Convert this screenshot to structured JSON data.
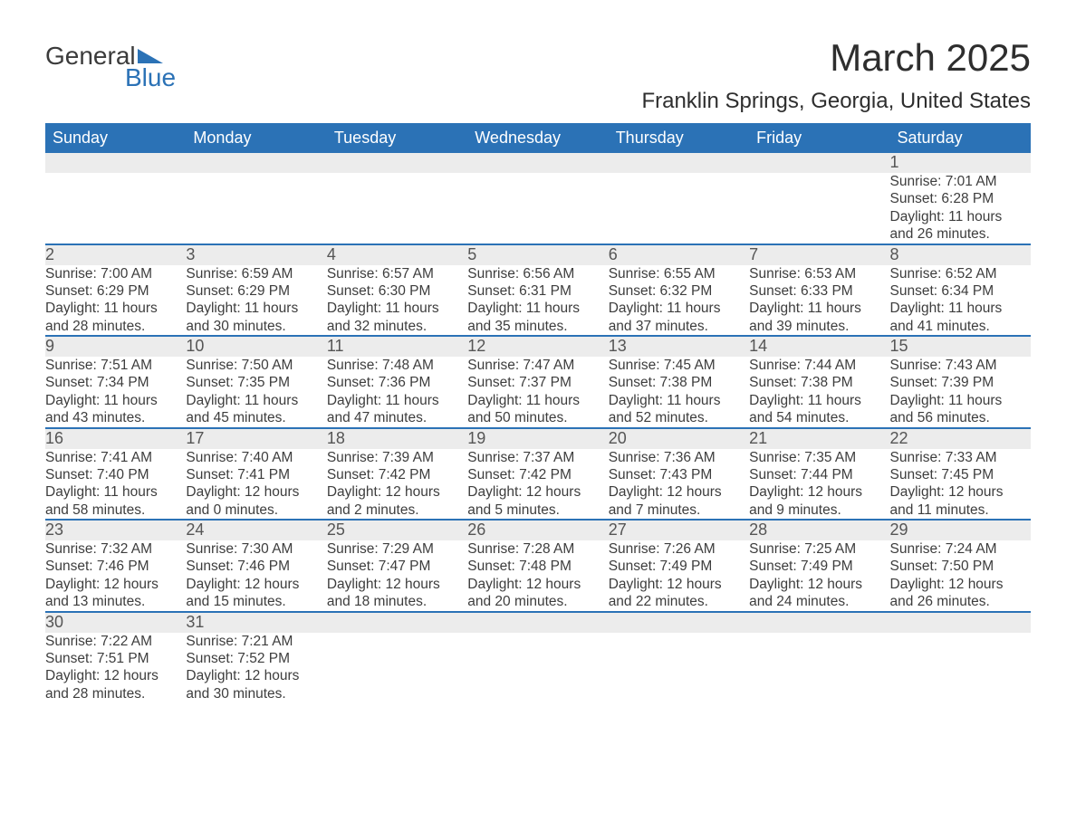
{
  "logo": {
    "line1": "General",
    "line2": "Blue"
  },
  "title": "March 2025",
  "location": "Franklin Springs, Georgia, United States",
  "weekday_headers": [
    "Sunday",
    "Monday",
    "Tuesday",
    "Wednesday",
    "Thursday",
    "Friday",
    "Saturday"
  ],
  "colors": {
    "header_bg": "#2b72b6",
    "header_fg": "#ffffff",
    "daynum_bg": "#ececec",
    "row_divider": "#2b72b6",
    "text": "#3d3d3d",
    "page_bg": "#ffffff"
  },
  "layout": {
    "columns": 7,
    "week_rows": 6,
    "month_title_fontsize": 42,
    "location_fontsize": 24,
    "header_fontsize": 18,
    "cell_fontsize": 15.5
  },
  "weeks": [
    [
      null,
      null,
      null,
      null,
      null,
      null,
      {
        "n": "1",
        "sr": "Sunrise: 7:01 AM",
        "ss": "Sunset: 6:28 PM",
        "d1": "Daylight: 11 hours",
        "d2": "and 26 minutes."
      }
    ],
    [
      {
        "n": "2",
        "sr": "Sunrise: 7:00 AM",
        "ss": "Sunset: 6:29 PM",
        "d1": "Daylight: 11 hours",
        "d2": "and 28 minutes."
      },
      {
        "n": "3",
        "sr": "Sunrise: 6:59 AM",
        "ss": "Sunset: 6:29 PM",
        "d1": "Daylight: 11 hours",
        "d2": "and 30 minutes."
      },
      {
        "n": "4",
        "sr": "Sunrise: 6:57 AM",
        "ss": "Sunset: 6:30 PM",
        "d1": "Daylight: 11 hours",
        "d2": "and 32 minutes."
      },
      {
        "n": "5",
        "sr": "Sunrise: 6:56 AM",
        "ss": "Sunset: 6:31 PM",
        "d1": "Daylight: 11 hours",
        "d2": "and 35 minutes."
      },
      {
        "n": "6",
        "sr": "Sunrise: 6:55 AM",
        "ss": "Sunset: 6:32 PM",
        "d1": "Daylight: 11 hours",
        "d2": "and 37 minutes."
      },
      {
        "n": "7",
        "sr": "Sunrise: 6:53 AM",
        "ss": "Sunset: 6:33 PM",
        "d1": "Daylight: 11 hours",
        "d2": "and 39 minutes."
      },
      {
        "n": "8",
        "sr": "Sunrise: 6:52 AM",
        "ss": "Sunset: 6:34 PM",
        "d1": "Daylight: 11 hours",
        "d2": "and 41 minutes."
      }
    ],
    [
      {
        "n": "9",
        "sr": "Sunrise: 7:51 AM",
        "ss": "Sunset: 7:34 PM",
        "d1": "Daylight: 11 hours",
        "d2": "and 43 minutes."
      },
      {
        "n": "10",
        "sr": "Sunrise: 7:50 AM",
        "ss": "Sunset: 7:35 PM",
        "d1": "Daylight: 11 hours",
        "d2": "and 45 minutes."
      },
      {
        "n": "11",
        "sr": "Sunrise: 7:48 AM",
        "ss": "Sunset: 7:36 PM",
        "d1": "Daylight: 11 hours",
        "d2": "and 47 minutes."
      },
      {
        "n": "12",
        "sr": "Sunrise: 7:47 AM",
        "ss": "Sunset: 7:37 PM",
        "d1": "Daylight: 11 hours",
        "d2": "and 50 minutes."
      },
      {
        "n": "13",
        "sr": "Sunrise: 7:45 AM",
        "ss": "Sunset: 7:38 PM",
        "d1": "Daylight: 11 hours",
        "d2": "and 52 minutes."
      },
      {
        "n": "14",
        "sr": "Sunrise: 7:44 AM",
        "ss": "Sunset: 7:38 PM",
        "d1": "Daylight: 11 hours",
        "d2": "and 54 minutes."
      },
      {
        "n": "15",
        "sr": "Sunrise: 7:43 AM",
        "ss": "Sunset: 7:39 PM",
        "d1": "Daylight: 11 hours",
        "d2": "and 56 minutes."
      }
    ],
    [
      {
        "n": "16",
        "sr": "Sunrise: 7:41 AM",
        "ss": "Sunset: 7:40 PM",
        "d1": "Daylight: 11 hours",
        "d2": "and 58 minutes."
      },
      {
        "n": "17",
        "sr": "Sunrise: 7:40 AM",
        "ss": "Sunset: 7:41 PM",
        "d1": "Daylight: 12 hours",
        "d2": "and 0 minutes."
      },
      {
        "n": "18",
        "sr": "Sunrise: 7:39 AM",
        "ss": "Sunset: 7:42 PM",
        "d1": "Daylight: 12 hours",
        "d2": "and 2 minutes."
      },
      {
        "n": "19",
        "sr": "Sunrise: 7:37 AM",
        "ss": "Sunset: 7:42 PM",
        "d1": "Daylight: 12 hours",
        "d2": "and 5 minutes."
      },
      {
        "n": "20",
        "sr": "Sunrise: 7:36 AM",
        "ss": "Sunset: 7:43 PM",
        "d1": "Daylight: 12 hours",
        "d2": "and 7 minutes."
      },
      {
        "n": "21",
        "sr": "Sunrise: 7:35 AM",
        "ss": "Sunset: 7:44 PM",
        "d1": "Daylight: 12 hours",
        "d2": "and 9 minutes."
      },
      {
        "n": "22",
        "sr": "Sunrise: 7:33 AM",
        "ss": "Sunset: 7:45 PM",
        "d1": "Daylight: 12 hours",
        "d2": "and 11 minutes."
      }
    ],
    [
      {
        "n": "23",
        "sr": "Sunrise: 7:32 AM",
        "ss": "Sunset: 7:46 PM",
        "d1": "Daylight: 12 hours",
        "d2": "and 13 minutes."
      },
      {
        "n": "24",
        "sr": "Sunrise: 7:30 AM",
        "ss": "Sunset: 7:46 PM",
        "d1": "Daylight: 12 hours",
        "d2": "and 15 minutes."
      },
      {
        "n": "25",
        "sr": "Sunrise: 7:29 AM",
        "ss": "Sunset: 7:47 PM",
        "d1": "Daylight: 12 hours",
        "d2": "and 18 minutes."
      },
      {
        "n": "26",
        "sr": "Sunrise: 7:28 AM",
        "ss": "Sunset: 7:48 PM",
        "d1": "Daylight: 12 hours",
        "d2": "and 20 minutes."
      },
      {
        "n": "27",
        "sr": "Sunrise: 7:26 AM",
        "ss": "Sunset: 7:49 PM",
        "d1": "Daylight: 12 hours",
        "d2": "and 22 minutes."
      },
      {
        "n": "28",
        "sr": "Sunrise: 7:25 AM",
        "ss": "Sunset: 7:49 PM",
        "d1": "Daylight: 12 hours",
        "d2": "and 24 minutes."
      },
      {
        "n": "29",
        "sr": "Sunrise: 7:24 AM",
        "ss": "Sunset: 7:50 PM",
        "d1": "Daylight: 12 hours",
        "d2": "and 26 minutes."
      }
    ],
    [
      {
        "n": "30",
        "sr": "Sunrise: 7:22 AM",
        "ss": "Sunset: 7:51 PM",
        "d1": "Daylight: 12 hours",
        "d2": "and 28 minutes."
      },
      {
        "n": "31",
        "sr": "Sunrise: 7:21 AM",
        "ss": "Sunset: 7:52 PM",
        "d1": "Daylight: 12 hours",
        "d2": "and 30 minutes."
      },
      null,
      null,
      null,
      null,
      null
    ]
  ]
}
